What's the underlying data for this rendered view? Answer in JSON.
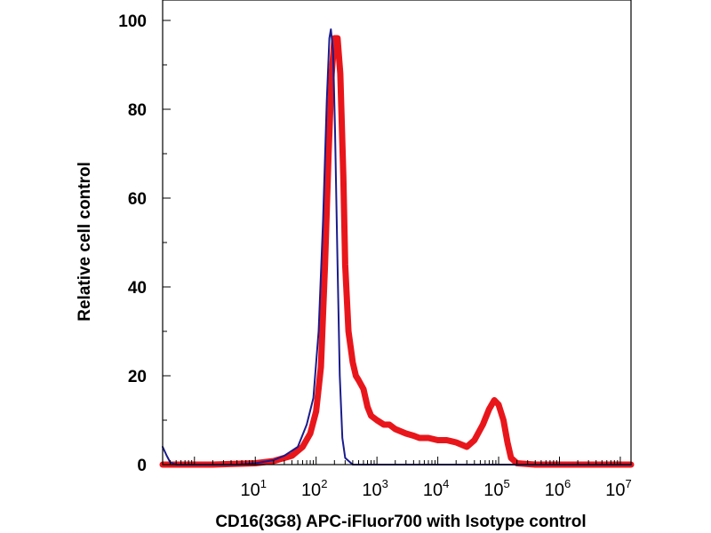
{
  "chart_data": {
    "type": "line",
    "title": "",
    "xlabel": "CD16(3G8) APC-iFluor700 with Isotype control",
    "ylabel": "Relative cell control",
    "x_scale": "log",
    "xlim": [
      0.3,
      15000000
    ],
    "ylim": [
      0,
      100
    ],
    "grid": false,
    "legend": "none",
    "x_ticks": [
      {
        "base": "10",
        "exp": "1",
        "value": 10
      },
      {
        "base": "10",
        "exp": "2",
        "value": 100
      },
      {
        "base": "10",
        "exp": "3",
        "value": 1000
      },
      {
        "base": "10",
        "exp": "4",
        "value": 10000
      },
      {
        "base": "10",
        "exp": "5",
        "value": 100000
      },
      {
        "base": "10",
        "exp": "6",
        "value": 1000000
      },
      {
        "base": "10",
        "exp": "7",
        "value": 10000000
      }
    ],
    "y_ticks": [
      {
        "label": "0",
        "value": 0
      },
      {
        "label": "20",
        "value": 20
      },
      {
        "label": "40",
        "value": 40
      },
      {
        "label": "60",
        "value": 60
      },
      {
        "label": "80",
        "value": 80
      },
      {
        "label": "100",
        "value": 100
      }
    ],
    "series": [
      {
        "color": "#e8161b",
        "points": [
          [
            0.3,
            0
          ],
          [
            2,
            0
          ],
          [
            10,
            0.3
          ],
          [
            20,
            0.8
          ],
          [
            40,
            2
          ],
          [
            60,
            4
          ],
          [
            80,
            7
          ],
          [
            100,
            12
          ],
          [
            120,
            22
          ],
          [
            140,
            45
          ],
          [
            160,
            70
          ],
          [
            180,
            88
          ],
          [
            200,
            96
          ],
          [
            225,
            96
          ],
          [
            250,
            88
          ],
          [
            280,
            65
          ],
          [
            300,
            45
          ],
          [
            340,
            30
          ],
          [
            400,
            23
          ],
          [
            450,
            20
          ],
          [
            500,
            19
          ],
          [
            600,
            17
          ],
          [
            700,
            13
          ],
          [
            800,
            11
          ],
          [
            1000,
            10
          ],
          [
            1300,
            9
          ],
          [
            1600,
            9
          ],
          [
            2000,
            8
          ],
          [
            3000,
            7
          ],
          [
            4000,
            6.5
          ],
          [
            5000,
            6
          ],
          [
            7000,
            6
          ],
          [
            10000,
            5.5
          ],
          [
            14000,
            5.5
          ],
          [
            20000,
            5
          ],
          [
            30000,
            4
          ],
          [
            40000,
            5.5
          ],
          [
            55000,
            9
          ],
          [
            70000,
            12.5
          ],
          [
            85000,
            14.5
          ],
          [
            100000,
            13.5
          ],
          [
            120000,
            10
          ],
          [
            140000,
            5
          ],
          [
            160000,
            1.5
          ],
          [
            200000,
            0.3
          ],
          [
            400000,
            0
          ],
          [
            15000000,
            0
          ]
        ]
      },
      {
        "color": "#1a1c8c",
        "points": [
          [
            0.3,
            4
          ],
          [
            0.35,
            2
          ],
          [
            0.4,
            0.5
          ],
          [
            0.5,
            0
          ],
          [
            5,
            0
          ],
          [
            10,
            0.3
          ],
          [
            20,
            1
          ],
          [
            30,
            2
          ],
          [
            50,
            4
          ],
          [
            70,
            9
          ],
          [
            90,
            15
          ],
          [
            110,
            30
          ],
          [
            130,
            55
          ],
          [
            150,
            82
          ],
          [
            165,
            96
          ],
          [
            175,
            98
          ],
          [
            190,
            93
          ],
          [
            205,
            75
          ],
          [
            225,
            45
          ],
          [
            245,
            20
          ],
          [
            270,
            6
          ],
          [
            300,
            1.5
          ],
          [
            400,
            0
          ],
          [
            1000,
            0
          ],
          [
            15000000,
            0
          ]
        ]
      }
    ]
  }
}
